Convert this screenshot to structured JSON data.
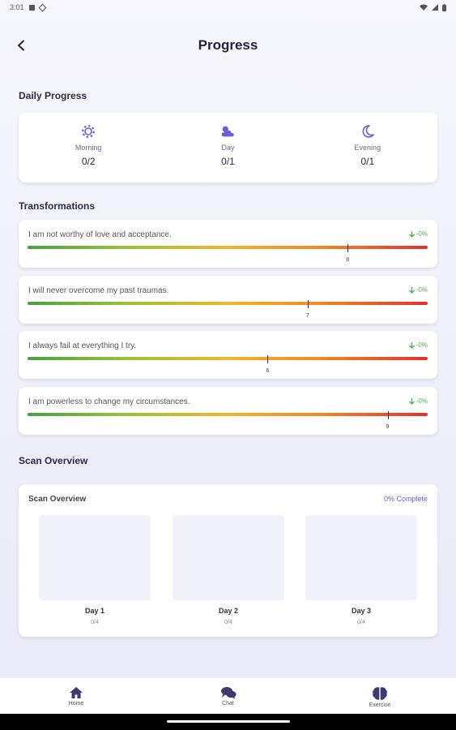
{
  "status_bar": {
    "time": "3:01"
  },
  "header": {
    "title": "Progress"
  },
  "daily_progress": {
    "title": "Daily Progress",
    "items": [
      {
        "label": "Morning",
        "count": "0/2",
        "icon": "sun-gear-icon"
      },
      {
        "label": "Day",
        "count": "0/1",
        "icon": "cloud-sun-icon"
      },
      {
        "label": "Evening",
        "count": "0/1",
        "icon": "moon-icon"
      }
    ]
  },
  "transformations": {
    "title": "Transformations",
    "items": [
      {
        "text": "I am not worthy of love and acceptance.",
        "change": "-0%",
        "marker": "8",
        "level": 0.8
      },
      {
        "text": "I will never overcome my past traumas.",
        "change": "-0%",
        "marker": "7",
        "level": 0.7
      },
      {
        "text": "I always fail at everything I try.",
        "change": "-0%",
        "marker": "6",
        "level": 0.6
      },
      {
        "text": "I am powerless to change my circumstances.",
        "change": "-0%",
        "marker": "9",
        "level": 0.9
      }
    ]
  },
  "scan_overview": {
    "section_title": "Scan Overview",
    "card_title": "Scan Overview",
    "complete": "0% Complete",
    "days": [
      {
        "label": "Day 1",
        "count": "0/4"
      },
      {
        "label": "Day 2",
        "count": "0/4"
      },
      {
        "label": "Day 3",
        "count": "0/4"
      }
    ]
  },
  "nav": {
    "items": [
      {
        "label": "Home",
        "icon": "home-icon"
      },
      {
        "label": "Chat",
        "icon": "chat-icon"
      },
      {
        "label": "Exercise",
        "icon": "brain-icon"
      }
    ]
  },
  "colors": {
    "accent": "#6b5bd6",
    "positive": "#4caf50"
  }
}
